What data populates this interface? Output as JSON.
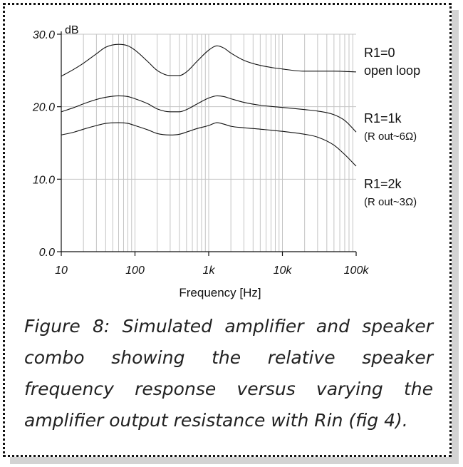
{
  "chart_data": {
    "type": "line",
    "x_scale": "log",
    "xlim": [
      10,
      100000
    ],
    "ylim": [
      0,
      30
    ],
    "grid": true,
    "xlabel": "Frequency [Hz]",
    "ylabel": "dB",
    "x_ticks": [
      10,
      100,
      1000,
      10000,
      100000
    ],
    "x_tick_labels": [
      "10",
      "100",
      "1k",
      "10k",
      "100k"
    ],
    "y_ticks": [
      0,
      10,
      20,
      30
    ],
    "y_tick_labels": [
      "0.0",
      "10.0",
      "20.0",
      "30.0"
    ],
    "series": [
      {
        "name": "R1=0",
        "sub": "open loop",
        "x": [
          10,
          15,
          20,
          30,
          40,
          60,
          80,
          100,
          150,
          200,
          300,
          400,
          500,
          700,
          1000,
          1300,
          1600,
          2000,
          3000,
          5000,
          10000,
          20000,
          50000,
          100000
        ],
        "y": [
          24.2,
          25.2,
          26.0,
          27.3,
          28.2,
          28.6,
          28.4,
          27.8,
          26.2,
          25.0,
          24.3,
          24.3,
          24.8,
          26.3,
          27.8,
          28.4,
          28.1,
          27.4,
          26.4,
          25.7,
          25.2,
          24.9,
          24.9,
          24.8
        ]
      },
      {
        "name": "R1=1k",
        "sub": "(R out~6Ω)",
        "x": [
          10,
          15,
          20,
          30,
          40,
          60,
          80,
          100,
          150,
          200,
          300,
          400,
          500,
          700,
          1000,
          1300,
          1600,
          2000,
          3000,
          5000,
          10000,
          20000,
          30000,
          50000,
          70000,
          100000
        ],
        "y": [
          19.3,
          19.9,
          20.4,
          21.0,
          21.3,
          21.5,
          21.4,
          21.1,
          20.4,
          19.7,
          19.3,
          19.3,
          19.6,
          20.4,
          21.2,
          21.5,
          21.4,
          21.1,
          20.6,
          20.2,
          19.9,
          19.6,
          19.4,
          18.9,
          18.1,
          16.5
        ]
      },
      {
        "name": "R1=2k",
        "sub": "(R out~3Ω)",
        "x": [
          10,
          15,
          20,
          30,
          40,
          60,
          80,
          100,
          150,
          200,
          300,
          400,
          500,
          700,
          1000,
          1300,
          1600,
          2000,
          3000,
          5000,
          10000,
          20000,
          30000,
          50000,
          70000,
          100000
        ],
        "y": [
          16.1,
          16.5,
          16.9,
          17.4,
          17.7,
          17.8,
          17.7,
          17.4,
          16.8,
          16.3,
          16.1,
          16.2,
          16.5,
          17.0,
          17.4,
          17.8,
          17.6,
          17.3,
          17.1,
          16.9,
          16.6,
          16.2,
          15.8,
          14.7,
          13.4,
          11.8
        ]
      }
    ]
  },
  "caption": "Figure 8: Simulated amplifier and speaker combo showing the relative speaker frequency response versus varying the amplifier output resistance with Rin (fig 4)."
}
